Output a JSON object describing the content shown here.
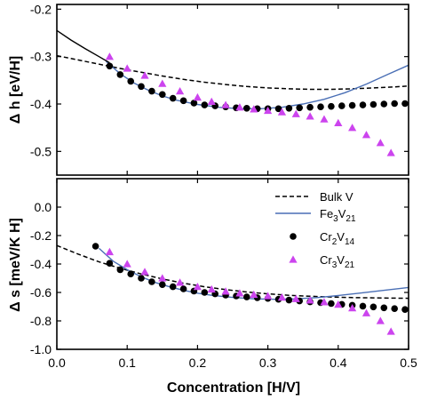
{
  "chart_data": [
    {
      "type": "scatter",
      "panel": "top",
      "ylabel": "Δ h [eV/H]",
      "xlim": [
        0.0,
        0.5
      ],
      "ylim": [
        -0.55,
        -0.19
      ],
      "yticks": [
        "-0.2",
        "-0.3",
        "-0.4",
        "-0.5"
      ],
      "ytick_values": [
        -0.2,
        -0.3,
        -0.4,
        -0.5
      ],
      "grid": false,
      "series": [
        {
          "key": "bulk_v",
          "style": "dashed-line",
          "color": "#000000",
          "x": [
            0.0,
            0.03,
            0.06,
            0.09,
            0.12,
            0.15,
            0.18,
            0.21,
            0.24,
            0.27,
            0.3,
            0.33,
            0.36,
            0.39,
            0.42,
            0.45,
            0.48,
            0.5
          ],
          "y": [
            -0.298,
            -0.307,
            -0.316,
            -0.325,
            -0.333,
            -0.341,
            -0.348,
            -0.354,
            -0.359,
            -0.363,
            -0.366,
            -0.368,
            -0.369,
            -0.369,
            -0.368,
            -0.366,
            -0.364,
            -0.362
          ]
        },
        {
          "key": "fe3v21",
          "style": "line",
          "color": "#4a6fb5",
          "x": [
            0.07,
            0.09,
            0.11,
            0.13,
            0.15,
            0.17,
            0.2,
            0.23,
            0.26,
            0.29,
            0.32,
            0.35,
            0.38,
            0.41,
            0.44,
            0.47,
            0.5
          ],
          "y": [
            -0.31,
            -0.336,
            -0.356,
            -0.371,
            -0.383,
            -0.392,
            -0.401,
            -0.407,
            -0.41,
            -0.41,
            -0.407,
            -0.4,
            -0.39,
            -0.376,
            -0.358,
            -0.338,
            -0.318
          ]
        },
        {
          "key": "solid_black",
          "style": "line",
          "color": "#000000",
          "x": [
            0.0,
            0.02,
            0.04,
            0.06,
            0.075
          ],
          "y": [
            -0.245,
            -0.265,
            -0.283,
            -0.3,
            -0.313
          ]
        },
        {
          "key": "cr2v14",
          "style": "circle",
          "color": "#000000",
          "x": [
            0.075,
            0.09,
            0.105,
            0.12,
            0.135,
            0.15,
            0.165,
            0.18,
            0.195,
            0.21,
            0.225,
            0.24,
            0.255,
            0.27,
            0.285,
            0.3,
            0.315,
            0.33,
            0.345,
            0.36,
            0.375,
            0.39,
            0.405,
            0.42,
            0.435,
            0.45,
            0.465,
            0.48,
            0.495
          ],
          "y": [
            -0.32,
            -0.338,
            -0.352,
            -0.363,
            -0.373,
            -0.38,
            -0.388,
            -0.393,
            -0.398,
            -0.402,
            -0.404,
            -0.406,
            -0.408,
            -0.409,
            -0.41,
            -0.41,
            -0.41,
            -0.409,
            -0.408,
            -0.407,
            -0.406,
            -0.405,
            -0.404,
            -0.403,
            -0.402,
            -0.401,
            -0.4,
            -0.399,
            -0.399
          ]
        },
        {
          "key": "cr3v21",
          "style": "triangle",
          "color": "#cc44ee",
          "x": [
            0.075,
            0.1,
            0.125,
            0.15,
            0.175,
            0.2,
            0.22,
            0.24,
            0.26,
            0.28,
            0.3,
            0.32,
            0.34,
            0.36,
            0.38,
            0.4,
            0.42,
            0.44,
            0.46,
            0.475
          ],
          "y": [
            -0.3,
            -0.325,
            -0.34,
            -0.357,
            -0.373,
            -0.386,
            -0.395,
            -0.402,
            -0.407,
            -0.411,
            -0.414,
            -0.417,
            -0.421,
            -0.426,
            -0.432,
            -0.44,
            -0.45,
            -0.465,
            -0.482,
            -0.503
          ]
        }
      ]
    },
    {
      "type": "scatter",
      "panel": "bottom",
      "xlabel": "Concentration [H/V]",
      "ylabel": "Δ s [meV/K H]",
      "xlim": [
        0.0,
        0.5
      ],
      "ylim": [
        -1.0,
        0.2
      ],
      "xticks": [
        "0.0",
        "0.1",
        "0.2",
        "0.3",
        "0.4",
        "0.5"
      ],
      "xtick_values": [
        0.0,
        0.1,
        0.2,
        0.3,
        0.4,
        0.5
      ],
      "yticks": [
        "0.0",
        "-0.2",
        "-0.4",
        "-0.6",
        "-0.8",
        "-1.0"
      ],
      "ytick_values": [
        0.0,
        -0.2,
        -0.4,
        -0.6,
        -0.8,
        -1.0
      ],
      "grid": false,
      "legend_position": "top-right",
      "series": [
        {
          "key": "bulk_v",
          "name": "Bulk V",
          "style": "dashed-line",
          "color": "#000000",
          "x": [
            0.0,
            0.03,
            0.06,
            0.09,
            0.12,
            0.15,
            0.18,
            0.21,
            0.24,
            0.27,
            0.3,
            0.33,
            0.36,
            0.39,
            0.42,
            0.45,
            0.48,
            0.5
          ],
          "y": [
            -0.27,
            -0.33,
            -0.385,
            -0.43,
            -0.47,
            -0.505,
            -0.535,
            -0.56,
            -0.58,
            -0.597,
            -0.61,
            -0.62,
            -0.627,
            -0.632,
            -0.636,
            -0.638,
            -0.64,
            -0.641
          ]
        },
        {
          "key": "fe3v21",
          "name": "Fe3V21",
          "style": "line",
          "color": "#4a6fb5",
          "x": [
            0.06,
            0.08,
            0.1,
            0.12,
            0.14,
            0.16,
            0.18,
            0.2,
            0.22,
            0.25,
            0.28,
            0.31,
            0.34,
            0.37,
            0.4,
            0.43,
            0.46,
            0.5
          ],
          "y": [
            -0.29,
            -0.38,
            -0.44,
            -0.49,
            -0.53,
            -0.56,
            -0.585,
            -0.605,
            -0.62,
            -0.635,
            -0.645,
            -0.648,
            -0.645,
            -0.636,
            -0.622,
            -0.605,
            -0.588,
            -0.565
          ]
        },
        {
          "key": "cr2v14",
          "name": "Cr2V14",
          "style": "circle",
          "color": "#000000",
          "x": [
            0.055,
            0.075,
            0.09,
            0.105,
            0.12,
            0.135,
            0.15,
            0.165,
            0.18,
            0.195,
            0.21,
            0.225,
            0.24,
            0.255,
            0.27,
            0.285,
            0.3,
            0.315,
            0.33,
            0.345,
            0.36,
            0.375,
            0.39,
            0.405,
            0.42,
            0.435,
            0.45,
            0.465,
            0.48,
            0.495
          ],
          "y": [
            -0.275,
            -0.395,
            -0.44,
            -0.47,
            -0.5,
            -0.525,
            -0.545,
            -0.56,
            -0.575,
            -0.59,
            -0.6,
            -0.61,
            -0.618,
            -0.625,
            -0.632,
            -0.637,
            -0.642,
            -0.648,
            -0.654,
            -0.66,
            -0.666,
            -0.672,
            -0.678,
            -0.684,
            -0.69,
            -0.696,
            -0.702,
            -0.708,
            -0.714,
            -0.72
          ]
        },
        {
          "key": "cr3v21",
          "name": "Cr3V21",
          "style": "triangle",
          "color": "#cc44ee",
          "x": [
            0.075,
            0.1,
            0.125,
            0.15,
            0.175,
            0.2,
            0.22,
            0.24,
            0.26,
            0.28,
            0.3,
            0.32,
            0.34,
            0.36,
            0.38,
            0.4,
            0.42,
            0.44,
            0.46,
            0.475
          ],
          "y": [
            -0.315,
            -0.4,
            -0.455,
            -0.5,
            -0.53,
            -0.56,
            -0.578,
            -0.593,
            -0.605,
            -0.615,
            -0.625,
            -0.635,
            -0.645,
            -0.655,
            -0.668,
            -0.685,
            -0.71,
            -0.745,
            -0.8,
            -0.875
          ]
        }
      ],
      "legend": [
        {
          "key": "bulk_v",
          "label": "Bulk V",
          "sub": "",
          "style": "dashed-line",
          "color": "#000000"
        },
        {
          "key": "fe3v21",
          "label": "Fe3V21",
          "main": "Fe",
          "sub1": "3",
          "mid": "V",
          "sub2": "21",
          "style": "line",
          "color": "#4a6fb5"
        },
        {
          "key": "cr2v14",
          "label": "Cr2V14",
          "main": "Cr",
          "sub1": "2",
          "mid": "V",
          "sub2": "14",
          "style": "circle",
          "color": "#000000"
        },
        {
          "key": "cr3v21",
          "label": "Cr3V21",
          "main": "Cr",
          "sub1": "3",
          "mid": "V",
          "sub2": "21",
          "style": "triangle",
          "color": "#cc44ee"
        }
      ]
    }
  ]
}
